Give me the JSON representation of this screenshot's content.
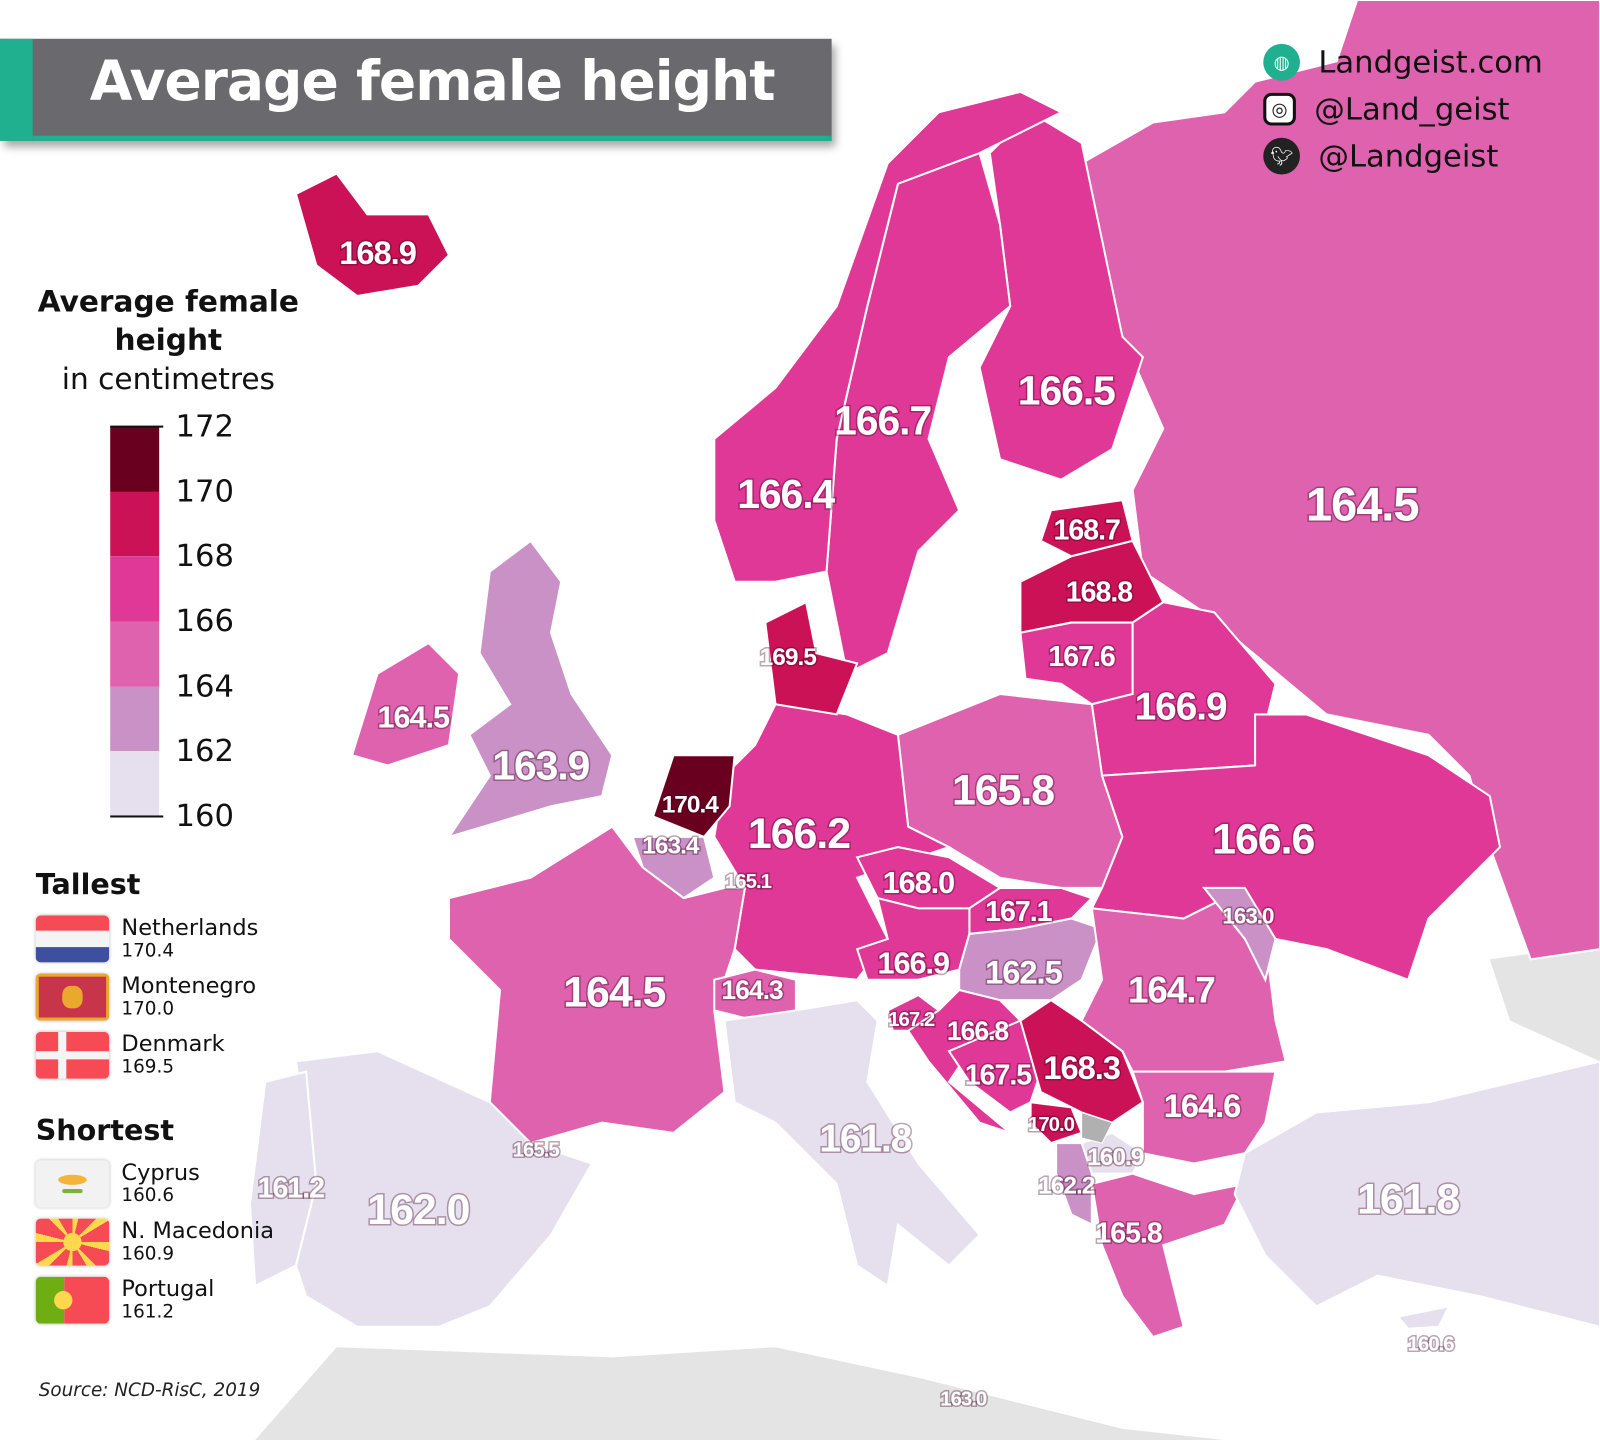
{
  "header": {
    "title": "Average female height"
  },
  "social": [
    {
      "icon": "globe-icon",
      "text": "Landgeist.com"
    },
    {
      "icon": "instagram-icon",
      "text": "@Land_geist"
    },
    {
      "icon": "twitter-icon",
      "text": "@Landgeist"
    }
  ],
  "legend": {
    "title_line1": "Average female",
    "title_line2": "height",
    "subtitle": "in centimetres",
    "ticks": [
      "172",
      "170",
      "168",
      "166",
      "164",
      "162",
      "160"
    ],
    "bin_colors": [
      "#6a0020",
      "#cb1256",
      "#e03896",
      "#de62ae",
      "#c991c6",
      "#e6dfee"
    ]
  },
  "tallest": {
    "heading": "Tallest",
    "items": [
      {
        "country": "Netherlands",
        "value": "170.4",
        "flag": "netherlands-flag"
      },
      {
        "country": "Montenegro",
        "value": "170.0",
        "flag": "montenegro-flag"
      },
      {
        "country": "Denmark",
        "value": "169.5",
        "flag": "denmark-flag"
      }
    ]
  },
  "shortest": {
    "heading": "Shortest",
    "items": [
      {
        "country": "Cyprus",
        "value": "160.6",
        "flag": "cyprus-flag"
      },
      {
        "country": "N. Macedonia",
        "value": "160.9",
        "flag": "north-macedonia-flag"
      },
      {
        "country": "Portugal",
        "value": "161.2",
        "flag": "portugal-flag"
      }
    ]
  },
  "source": "Source: NCD-RisC, 2019",
  "map_labels": [
    "164.5",
    "166.5",
    "166.7",
    "166.4",
    "168.9",
    "164.5",
    "163.9",
    "168.7",
    "168.8",
    "167.6",
    "166.9",
    "165.8",
    "166.6",
    "166.2",
    "169.5",
    "170.4",
    "163.4",
    "164.5",
    "162.0",
    "161.2",
    "164.3",
    "161.8",
    "168.0",
    "167.1",
    "166.9",
    "162.5",
    "167.2",
    "166.8",
    "167.5",
    "168.3",
    "170.0",
    "160.9",
    "162.2",
    "165.8",
    "164.7",
    "163.0",
    "164.6",
    "161.8",
    "160.6",
    "165.1",
    "165.5",
    "163.0"
  ],
  "colors": {
    "no_data": "#b0b0b0",
    "background_land": "#e4e4e4",
    "accent": "#20b08f",
    "header_bg": "#6a6a6e"
  }
}
